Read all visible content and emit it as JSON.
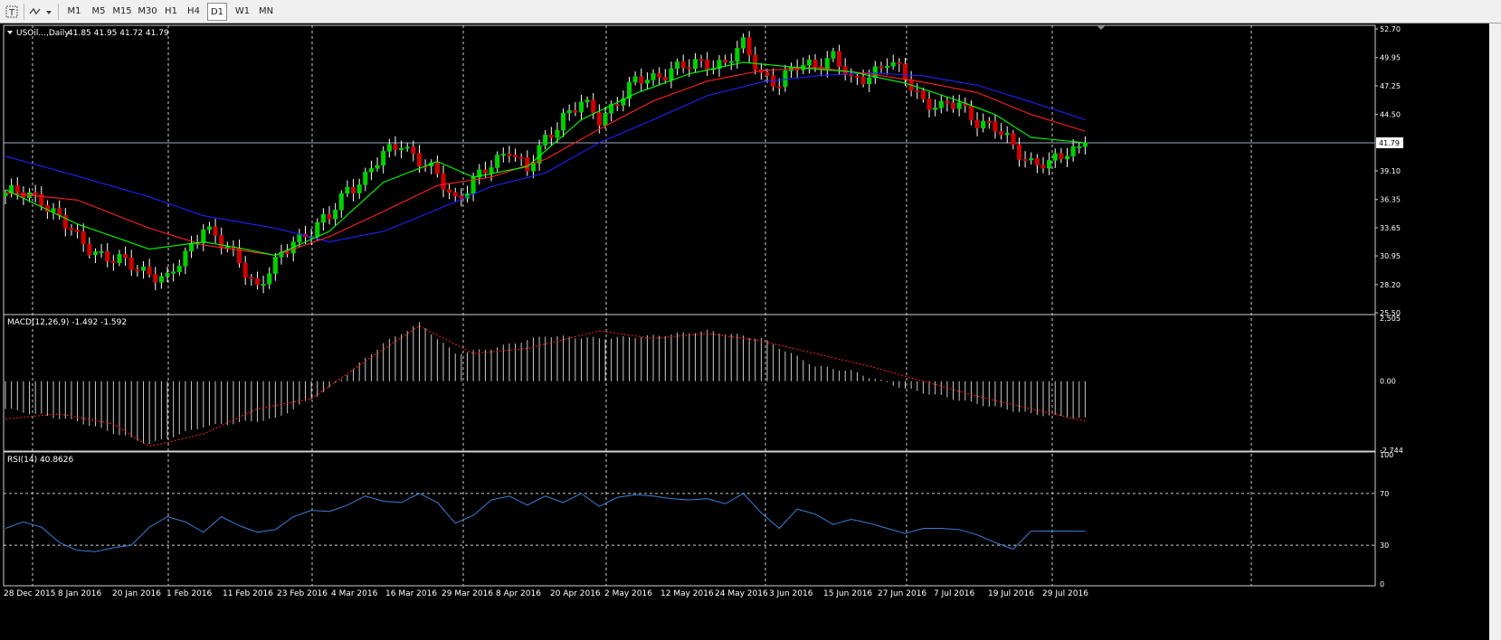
{
  "toolbar": {
    "timeframes": [
      "M1",
      "M5",
      "M15",
      "M30",
      "H1",
      "H4",
      "D1",
      "W1",
      "MN"
    ],
    "selected": "D1"
  },
  "main": {
    "symbol_label": "USOil...,Daily",
    "ohlc": "41.85 41.95 41.72 41.79",
    "price_ticks": [
      "52.70",
      "49.95",
      "47.25",
      "44.50",
      "41.79",
      "39.10",
      "36.35",
      "33.65",
      "30.95",
      "28.20",
      "25.50"
    ],
    "current_price": "41.79"
  },
  "macd": {
    "label": "MACD(12,26,9) -1.492 -1.592",
    "ticks": [
      "2.505",
      "0.00",
      "-2.744"
    ]
  },
  "rsi": {
    "label": "RSI(14) 40.8626",
    "ticks": [
      "100",
      "70",
      "30",
      "0"
    ]
  },
  "time_axis": [
    "28 Dec 2015",
    "8 Jan 2016",
    "20 Jan 2016",
    "1 Feb 2016",
    "11 Feb 2016",
    "23 Feb 2016",
    "4 Mar 2016",
    "16 Mar 2016",
    "29 Mar 2016",
    "8 Apr 2016",
    "20 Apr 2016",
    "2 May 2016",
    "12 May 2016",
    "24 May 2016",
    "3 Jun 2016",
    "15 Jun 2016",
    "27 Jun 2016",
    "7 Jul 2016",
    "19 Jul 2016",
    "29 Jul 2016"
  ],
  "colors": {
    "bull": "#00d000",
    "bear": "#d00000",
    "ma_fast": "#00ff00",
    "ma_mid": "#ff2020",
    "ma_slow": "#2020ff",
    "rsi_line": "#3a7fd6",
    "macd_signal": "#ff2020",
    "macd_hist": "#c8c8c8",
    "grid": "#cccccc"
  },
  "chart_data": {
    "type": "candlestick",
    "symbol": "USOil",
    "timeframe": "Daily",
    "price_range": [
      25.5,
      52.7
    ],
    "close_path": [
      [
        0,
        37.0
      ],
      [
        6,
        36.5
      ],
      [
        12,
        32.5
      ],
      [
        18,
        30.5
      ],
      [
        24,
        29.5
      ],
      [
        27,
        28.5
      ],
      [
        30,
        31.0
      ],
      [
        33,
        34.0
      ],
      [
        36,
        32.0
      ],
      [
        39,
        30.5
      ],
      [
        42,
        28.0
      ],
      [
        45,
        30.0
      ],
      [
        48,
        32.5
      ],
      [
        51,
        33.5
      ],
      [
        54,
        34.5
      ],
      [
        57,
        37.5
      ],
      [
        60,
        38.5
      ],
      [
        63,
        40.5
      ],
      [
        66,
        42.0
      ],
      [
        69,
        40.0
      ],
      [
        72,
        38.5
      ],
      [
        75,
        36.5
      ],
      [
        78,
        38.0
      ],
      [
        81,
        39.5
      ],
      [
        84,
        41.5
      ],
      [
        87,
        39.0
      ],
      [
        90,
        42.0
      ],
      [
        93,
        44.5
      ],
      [
        96,
        45.5
      ],
      [
        99,
        44.0
      ],
      [
        102,
        46.0
      ],
      [
        105,
        47.5
      ],
      [
        108,
        48.0
      ],
      [
        111,
        49.0
      ],
      [
        114,
        49.0
      ],
      [
        117,
        49.5
      ],
      [
        120,
        49.5
      ],
      [
        123,
        51.0
      ],
      [
        126,
        48.5
      ],
      [
        129,
        47.5
      ],
      [
        132,
        49.0
      ],
      [
        135,
        49.5
      ],
      [
        138,
        50.0
      ],
      [
        141,
        47.5
      ],
      [
        144,
        48.5
      ],
      [
        147,
        49.5
      ],
      [
        150,
        48.0
      ],
      [
        153,
        46.0
      ],
      [
        156,
        45.0
      ],
      [
        159,
        45.5
      ],
      [
        162,
        44.0
      ],
      [
        165,
        43.0
      ],
      [
        168,
        41.5
      ],
      [
        171,
        40.0
      ],
      [
        174,
        39.5
      ],
      [
        177,
        41.0
      ],
      [
        180,
        41.79
      ]
    ],
    "macd_hist_path": [
      [
        0,
        -1.1
      ],
      [
        12,
        -1.6
      ],
      [
        24,
        -2.5
      ],
      [
        33,
        -1.8
      ],
      [
        45,
        -1.5
      ],
      [
        54,
        -0.3
      ],
      [
        63,
        1.5
      ],
      [
        69,
        2.3
      ],
      [
        75,
        1.1
      ],
      [
        81,
        1.3
      ],
      [
        90,
        1.8
      ],
      [
        99,
        1.7
      ],
      [
        108,
        1.8
      ],
      [
        117,
        2.0
      ],
      [
        126,
        1.7
      ],
      [
        135,
        0.6
      ],
      [
        141,
        0.4
      ],
      [
        150,
        -0.3
      ],
      [
        162,
        -0.9
      ],
      [
        171,
        -1.3
      ],
      [
        180,
        -1.49
      ]
    ],
    "macd_signal_path": [
      [
        0,
        -1.5
      ],
      [
        9,
        -1.3
      ],
      [
        18,
        -1.7
      ],
      [
        24,
        -2.6
      ],
      [
        33,
        -2.1
      ],
      [
        42,
        -1.1
      ],
      [
        51,
        -0.7
      ],
      [
        60,
        0.8
      ],
      [
        69,
        2.2
      ],
      [
        78,
        1.1
      ],
      [
        87,
        1.3
      ],
      [
        99,
        2.0
      ],
      [
        108,
        1.7
      ],
      [
        117,
        1.9
      ],
      [
        126,
        1.6
      ],
      [
        135,
        1.1
      ],
      [
        144,
        0.6
      ],
      [
        153,
        0.0
      ],
      [
        162,
        -0.6
      ],
      [
        171,
        -1.1
      ],
      [
        180,
        -1.59
      ]
    ],
    "rsi_path": [
      [
        0,
        43
      ],
      [
        3,
        48
      ],
      [
        6,
        44
      ],
      [
        9,
        32
      ],
      [
        12,
        26
      ],
      [
        15,
        25
      ],
      [
        18,
        28
      ],
      [
        21,
        30
      ],
      [
        24,
        44
      ],
      [
        27,
        52
      ],
      [
        30,
        48
      ],
      [
        33,
        40
      ],
      [
        36,
        52
      ],
      [
        39,
        45
      ],
      [
        42,
        40
      ],
      [
        45,
        42
      ],
      [
        48,
        52
      ],
      [
        51,
        57
      ],
      [
        54,
        56
      ],
      [
        57,
        61
      ],
      [
        60,
        68
      ],
      [
        63,
        64
      ],
      [
        66,
        63
      ],
      [
        69,
        70
      ],
      [
        72,
        63
      ],
      [
        75,
        47
      ],
      [
        78,
        53
      ],
      [
        81,
        65
      ],
      [
        84,
        68
      ],
      [
        87,
        61
      ],
      [
        90,
        68
      ],
      [
        93,
        63
      ],
      [
        96,
        70
      ],
      [
        99,
        60
      ],
      [
        102,
        67
      ],
      [
        105,
        69
      ],
      [
        108,
        68
      ],
      [
        111,
        66
      ],
      [
        114,
        65
      ],
      [
        117,
        66
      ],
      [
        120,
        62
      ],
      [
        123,
        70
      ],
      [
        126,
        55
      ],
      [
        129,
        43
      ],
      [
        132,
        58
      ],
      [
        135,
        54
      ],
      [
        138,
        46
      ],
      [
        141,
        50
      ],
      [
        144,
        47
      ],
      [
        147,
        43
      ],
      [
        150,
        39
      ],
      [
        153,
        43
      ],
      [
        156,
        43
      ],
      [
        159,
        42
      ],
      [
        162,
        38
      ],
      [
        165,
        32
      ],
      [
        168,
        27
      ],
      [
        171,
        41.0
      ],
      [
        174,
        40.9
      ],
      [
        180,
        40.86
      ]
    ],
    "ma_fast_path": [
      [
        0,
        37.3
      ],
      [
        12,
        34.0
      ],
      [
        24,
        31.6
      ],
      [
        33,
        32.3
      ],
      [
        39,
        31.7
      ],
      [
        45,
        31.0
      ],
      [
        54,
        33.3
      ],
      [
        63,
        38.0
      ],
      [
        72,
        40.0
      ],
      [
        78,
        38.5
      ],
      [
        87,
        39.5
      ],
      [
        96,
        44.0
      ],
      [
        105,
        46.5
      ],
      [
        114,
        48.4
      ],
      [
        123,
        49.5
      ],
      [
        132,
        49.0
      ],
      [
        141,
        48.6
      ],
      [
        150,
        47.5
      ],
      [
        159,
        45.8
      ],
      [
        165,
        44.5
      ],
      [
        171,
        42.3
      ],
      [
        180,
        41.79
      ]
    ],
    "ma_mid_path": [
      [
        0,
        37.0
      ],
      [
        12,
        36.3
      ],
      [
        24,
        33.6
      ],
      [
        33,
        32.0
      ],
      [
        45,
        31.0
      ],
      [
        54,
        32.8
      ],
      [
        63,
        35.2
      ],
      [
        72,
        37.7
      ],
      [
        81,
        38.5
      ],
      [
        90,
        40.2
      ],
      [
        99,
        43.1
      ],
      [
        108,
        45.8
      ],
      [
        117,
        47.7
      ],
      [
        126,
        48.7
      ],
      [
        135,
        49.0
      ],
      [
        144,
        48.4
      ],
      [
        153,
        47.6
      ],
      [
        162,
        46.6
      ],
      [
        171,
        44.5
      ],
      [
        180,
        42.9
      ]
    ],
    "ma_slow_path": [
      [
        0,
        40.5
      ],
      [
        12,
        38.6
      ],
      [
        24,
        36.6
      ],
      [
        33,
        34.8
      ],
      [
        45,
        33.6
      ],
      [
        54,
        32.3
      ],
      [
        63,
        33.3
      ],
      [
        72,
        35.4
      ],
      [
        81,
        37.6
      ],
      [
        90,
        38.9
      ],
      [
        99,
        41.8
      ],
      [
        108,
        44.0
      ],
      [
        117,
        46.3
      ],
      [
        126,
        47.6
      ],
      [
        135,
        48.2
      ],
      [
        144,
        48.5
      ],
      [
        153,
        48.2
      ],
      [
        162,
        47.3
      ],
      [
        171,
        45.7
      ],
      [
        180,
        44.0
      ]
    ]
  }
}
